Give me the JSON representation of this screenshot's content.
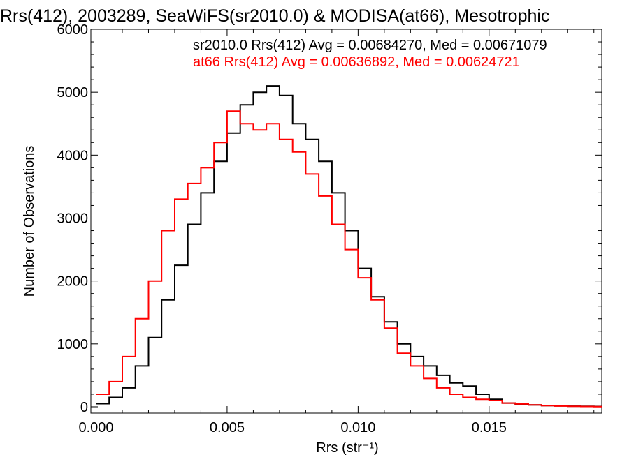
{
  "chart_data": {
    "type": "line",
    "title": "Rrs(412), 2003289, SeaWiFS(sr2010.0) & MODISA(at66), Mesotrophic",
    "xlabel": "Rrs (str⁻¹)",
    "ylabel": "Number of Observations",
    "xlim": [
      -0.0002,
      0.0193
    ],
    "ylim": [
      -100,
      6000
    ],
    "xticks": [
      0.0,
      0.005,
      0.01,
      0.015
    ],
    "xtick_labels": [
      "0.000",
      "0.005",
      "0.010",
      "0.015"
    ],
    "yticks": [
      0,
      1000,
      2000,
      3000,
      4000,
      5000,
      6000
    ],
    "ytick_labels": [
      "0",
      "1000",
      "2000",
      "3000",
      "4000",
      "5000",
      "6000"
    ],
    "legend_placement": "top-right",
    "grid": false,
    "series": [
      {
        "name": "sr2010.0",
        "color": "#000000",
        "legend": "sr2010.0 Rrs(412) Avg = 0.00684270, Med = 0.00671079",
        "x": [
          0.0,
          0.0005,
          0.001,
          0.0015,
          0.002,
          0.0025,
          0.003,
          0.0035,
          0.004,
          0.0045,
          0.005,
          0.0055,
          0.006,
          0.0065,
          0.007,
          0.0075,
          0.008,
          0.0085,
          0.009,
          0.0095,
          0.01,
          0.0105,
          0.011,
          0.0115,
          0.012,
          0.0125,
          0.013,
          0.0135,
          0.014,
          0.0145,
          0.015,
          0.0155,
          0.016,
          0.0165,
          0.017,
          0.0175,
          0.018,
          0.0185,
          0.019
        ],
        "values": [
          50,
          150,
          300,
          650,
          1100,
          1700,
          2250,
          2900,
          3400,
          3900,
          4350,
          4800,
          5000,
          5100,
          4950,
          4500,
          4250,
          3900,
          3400,
          2800,
          2200,
          1750,
          1350,
          1000,
          800,
          650,
          500,
          380,
          330,
          200,
          120,
          60,
          40,
          30,
          20,
          15,
          10,
          8,
          5
        ]
      },
      {
        "name": "at66",
        "color": "#ff0000",
        "legend": "at66 Rrs(412) Avg = 0.00636892, Med = 0.00624721",
        "x": [
          0.0,
          0.0005,
          0.001,
          0.0015,
          0.002,
          0.0025,
          0.003,
          0.0035,
          0.004,
          0.0045,
          0.005,
          0.0055,
          0.006,
          0.0065,
          0.007,
          0.0075,
          0.008,
          0.0085,
          0.009,
          0.0095,
          0.01,
          0.0105,
          0.011,
          0.0115,
          0.012,
          0.0125,
          0.013,
          0.0135,
          0.014,
          0.0145,
          0.015,
          0.0155,
          0.016,
          0.0165,
          0.017,
          0.0175,
          0.018,
          0.0185,
          0.019
        ],
        "values": [
          200,
          400,
          800,
          1400,
          2000,
          2800,
          3300,
          3550,
          3800,
          4200,
          4700,
          4500,
          4400,
          4500,
          4250,
          4050,
          3700,
          3350,
          2900,
          2500,
          2050,
          1700,
          1250,
          850,
          650,
          450,
          300,
          200,
          150,
          120,
          100,
          60,
          45,
          30,
          20,
          12,
          8,
          5,
          3
        ]
      }
    ]
  }
}
